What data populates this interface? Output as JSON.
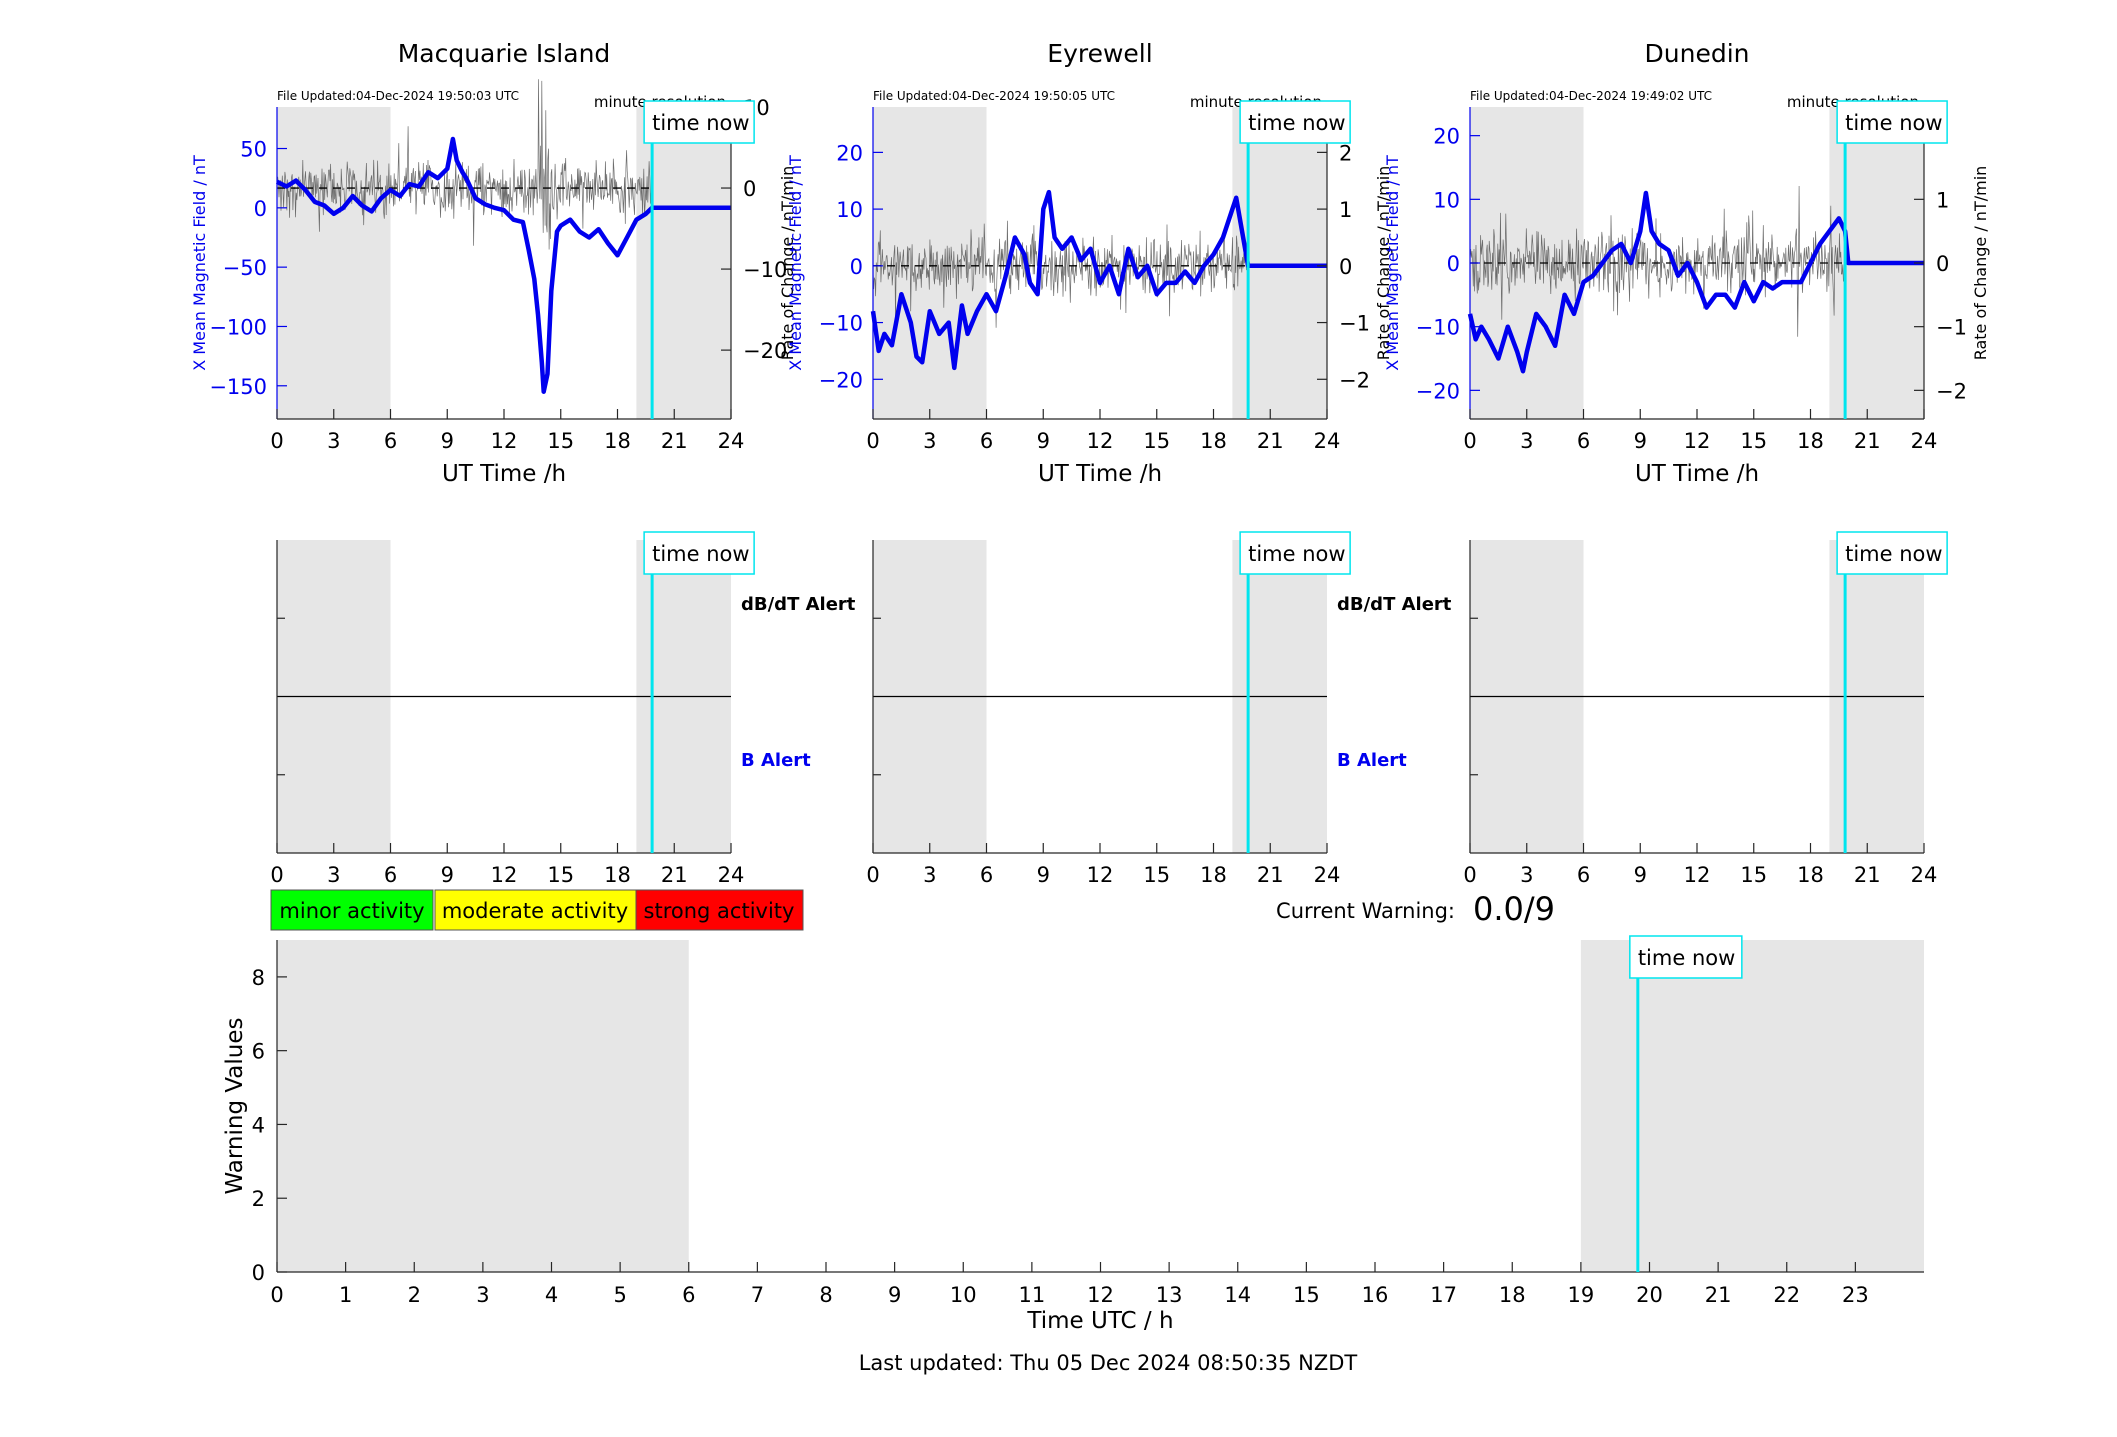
{
  "footer": {
    "last_updated": "Last updated: Thu 05 Dec 2024 08:50:35 NZDT"
  },
  "legend_boxes": [
    {
      "label": "minor activity",
      "color": "#00ff00"
    },
    {
      "label": "moderate activity",
      "color": "#ffff00"
    },
    {
      "label": "strong activity",
      "color": "#ff0000"
    }
  ],
  "current_warning": {
    "label": "Current Warning:",
    "value": "0.0/9"
  },
  "colors": {
    "field_line": "#0000ee",
    "rate_line": "#555555",
    "time_now": "#00e5ee",
    "night_shade": "#e6e6e6",
    "axis_blue": "#0000ee"
  },
  "chart_data": [
    {
      "type": "line",
      "title": "Macquarie Island",
      "file_updated": "File Updated:04-Dec-2024 19:50:03 UTC",
      "resolution_label": "minute resolution",
      "time_now_label": "time now",
      "time_now": 19.83,
      "shaded": [
        [
          0,
          6
        ],
        [
          19,
          24
        ]
      ],
      "xlabel": "UT Time /h",
      "ylabel_left": "X Mean Magnetic Field / nT",
      "ylabel_right": "Rate of Change / nT/min",
      "xlim": [
        0,
        24
      ],
      "xticks": [
        0,
        3,
        6,
        9,
        12,
        15,
        18,
        21,
        24
      ],
      "ylim_left": [
        -178,
        85
      ],
      "yticks_left": [
        -150,
        -100,
        -50,
        0,
        50
      ],
      "ylim_right": [
        -28.5,
        10.0
      ],
      "yticks_right": [
        -20,
        -10,
        0,
        10
      ],
      "rate_noise": 4,
      "field_series": {
        "name": "X Mean Magnetic Field",
        "x": [
          0,
          0.5,
          1,
          1.5,
          2,
          2.5,
          3,
          3.5,
          4,
          4.5,
          5,
          5.5,
          6,
          6.5,
          7,
          7.5,
          8,
          8.5,
          9,
          9.3,
          9.5,
          9.8,
          10,
          10.5,
          11,
          11.5,
          12,
          12.5,
          13,
          13.3,
          13.6,
          13.8,
          14,
          14.1,
          14.3,
          14.5,
          14.8,
          15,
          15.5,
          16,
          16.5,
          17,
          17.5,
          18,
          18.5,
          19,
          19.5,
          19.83,
          20,
          21,
          22,
          23,
          24
        ],
        "y": [
          22,
          18,
          23,
          15,
          5,
          2,
          -5,
          0,
          10,
          2,
          -3,
          8,
          15,
          10,
          20,
          18,
          30,
          25,
          33,
          58,
          40,
          30,
          25,
          8,
          3,
          0,
          -2,
          -10,
          -12,
          -35,
          -60,
          -90,
          -130,
          -155,
          -140,
          -70,
          -20,
          -15,
          -10,
          -20,
          -25,
          -18,
          -30,
          -40,
          -25,
          -10,
          -5,
          0,
          0,
          0,
          0,
          0,
          0
        ]
      },
      "rate_series": {
        "name": "Rate of Change",
        "x": [
          0,
          19.83
        ],
        "y": [
          0,
          0
        ]
      }
    },
    {
      "type": "line",
      "title": "Eyrewell",
      "file_updated": "File Updated:04-Dec-2024 19:50:05 UTC",
      "resolution_label": "minute resolution",
      "time_now_label": "time now",
      "time_now": 19.83,
      "shaded": [
        [
          0,
          6
        ],
        [
          19,
          24
        ]
      ],
      "xlabel": "UT Time /h",
      "ylabel_left": "X Mean Magnetic Field / nT",
      "ylabel_right": "Rate of Change / nT/min",
      "xlim": [
        0,
        24
      ],
      "xticks": [
        0,
        3,
        6,
        9,
        12,
        15,
        18,
        21,
        24
      ],
      "ylim_left": [
        -27,
        28
      ],
      "yticks_left": [
        -20,
        -10,
        0,
        10,
        20
      ],
      "ylim_right": [
        -2.7,
        2.8
      ],
      "yticks_right": [
        -2,
        -1,
        0,
        1,
        2
      ],
      "rate_noise": 0.6,
      "field_series": {
        "name": "X Mean Magnetic Field",
        "x": [
          0,
          0.3,
          0.6,
          1,
          1.5,
          2,
          2.3,
          2.6,
          3,
          3.5,
          4,
          4.3,
          4.7,
          5,
          5.5,
          6,
          6.5,
          7,
          7.5,
          8,
          8.3,
          8.7,
          9,
          9.3,
          9.6,
          10,
          10.5,
          11,
          11.5,
          12,
          12.5,
          13,
          13.5,
          14,
          14.5,
          15,
          15.5,
          16,
          16.5,
          17,
          17.5,
          18,
          18.5,
          19,
          19.2,
          19.83,
          20,
          21,
          22,
          23,
          24
        ],
        "y": [
          -8,
          -15,
          -12,
          -14,
          -5,
          -10,
          -16,
          -17,
          -8,
          -12,
          -10,
          -18,
          -7,
          -12,
          -8,
          -5,
          -8,
          -2,
          5,
          2,
          -3,
          -5,
          10,
          13,
          5,
          3,
          5,
          1,
          3,
          -3,
          0,
          -5,
          3,
          -2,
          0,
          -5,
          -3,
          -3,
          -1,
          -3,
          0,
          2,
          5,
          10,
          12,
          0,
          0,
          0,
          0,
          0,
          0
        ]
      },
      "rate_series": {
        "name": "Rate of Change",
        "x": [
          0,
          19.83
        ],
        "y": [
          0,
          0
        ]
      }
    },
    {
      "type": "line",
      "title": "Dunedin",
      "file_updated": "File Updated:04-Dec-2024 19:49:02 UTC",
      "resolution_label": "minute resolution",
      "time_now_label": "time now",
      "time_now": 19.83,
      "shaded": [
        [
          0,
          6
        ],
        [
          19,
          24
        ]
      ],
      "xlabel": "UT Time /h",
      "ylabel_left": "X Mean Magnetic Field / nT",
      "ylabel_right": "Rate of Change / nT/min",
      "xlim": [
        0,
        24
      ],
      "xticks": [
        0,
        3,
        6,
        9,
        12,
        15,
        18,
        21,
        24
      ],
      "ylim_left": [
        -24.5,
        24.5
      ],
      "yticks_left": [
        -20,
        -10,
        0,
        10,
        20
      ],
      "ylim_right": [
        -2.45,
        2.45
      ],
      "yticks_right": [
        -2,
        -1,
        0,
        1,
        2
      ],
      "rate_noise": 0.6,
      "field_series": {
        "name": "X Mean Magnetic Field",
        "x": [
          0,
          0.3,
          0.6,
          1,
          1.5,
          2,
          2.5,
          2.8,
          3,
          3.5,
          4,
          4.5,
          5,
          5.5,
          6,
          6.5,
          7,
          7.5,
          8,
          8.5,
          9,
          9.3,
          9.6,
          10,
          10.5,
          11,
          11.5,
          12,
          12.5,
          13,
          13.5,
          14,
          14.5,
          15,
          15.5,
          16,
          16.5,
          17,
          17.5,
          18,
          18.5,
          19,
          19.5,
          19.83,
          20,
          21,
          22,
          23,
          24
        ],
        "y": [
          -8,
          -12,
          -10,
          -12,
          -15,
          -10,
          -14,
          -17,
          -14,
          -8,
          -10,
          -13,
          -5,
          -8,
          -3,
          -2,
          0,
          2,
          3,
          0,
          5,
          11,
          5,
          3,
          2,
          -2,
          0,
          -3,
          -7,
          -5,
          -5,
          -7,
          -3,
          -6,
          -3,
          -4,
          -3,
          -3,
          -3,
          0,
          3,
          5,
          7,
          5,
          0,
          0,
          0,
          0,
          0
        ]
      },
      "rate_series": {
        "name": "Rate of Change",
        "x": [
          0,
          19.83
        ],
        "y": [
          0,
          0
        ]
      }
    },
    {
      "type": "line",
      "title": "",
      "alert_top_label": "dB/dT Alert",
      "alert_bottom_label": "B Alert",
      "time_now_label": "time now",
      "time_now": 19.83,
      "shaded": [
        [
          0,
          6
        ],
        [
          19,
          24
        ]
      ],
      "xlim": [
        0,
        24
      ],
      "xticks": [
        0,
        3,
        6,
        9,
        12,
        15,
        18,
        21,
        24
      ],
      "ylim": [
        0,
        2
      ],
      "series": [
        {
          "x": [
            0,
            24
          ],
          "y": [
            1,
            1
          ]
        }
      ]
    },
    {
      "type": "line",
      "title": "",
      "alert_top_label": "dB/dT Alert",
      "alert_bottom_label": "B Alert",
      "time_now_label": "time now",
      "time_now": 19.83,
      "shaded": [
        [
          0,
          6
        ],
        [
          19,
          24
        ]
      ],
      "xlim": [
        0,
        24
      ],
      "xticks": [
        0,
        3,
        6,
        9,
        12,
        15,
        18,
        21,
        24
      ],
      "ylim": [
        0,
        2
      ],
      "series": [
        {
          "x": [
            0,
            24
          ],
          "y": [
            1,
            1
          ]
        }
      ]
    },
    {
      "type": "line",
      "title": "",
      "alert_top_label": "",
      "alert_bottom_label": "",
      "time_now_label": "time now",
      "time_now": 19.83,
      "shaded": [
        [
          0,
          6
        ],
        [
          19,
          24
        ]
      ],
      "xlim": [
        0,
        24
      ],
      "xticks": [
        0,
        3,
        6,
        9,
        12,
        15,
        18,
        21,
        24
      ],
      "ylim": [
        0,
        2
      ],
      "series": [
        {
          "x": [
            0,
            24
          ],
          "y": [
            1,
            1
          ]
        }
      ]
    },
    {
      "type": "line",
      "title": "",
      "xlabel": "Time UTC / h",
      "ylabel": "Warning Values",
      "time_now_label": "time now",
      "time_now": 19.83,
      "shaded": [
        [
          0,
          6
        ],
        [
          19,
          24
        ]
      ],
      "xlim": [
        0,
        24
      ],
      "xticks": [
        0,
        1,
        2,
        3,
        4,
        5,
        6,
        7,
        8,
        9,
        10,
        11,
        12,
        13,
        14,
        15,
        16,
        17,
        18,
        19,
        20,
        21,
        22,
        23
      ],
      "ylim": [
        0,
        9
      ],
      "yticks": [
        0,
        2,
        4,
        6,
        8
      ],
      "series": []
    }
  ]
}
